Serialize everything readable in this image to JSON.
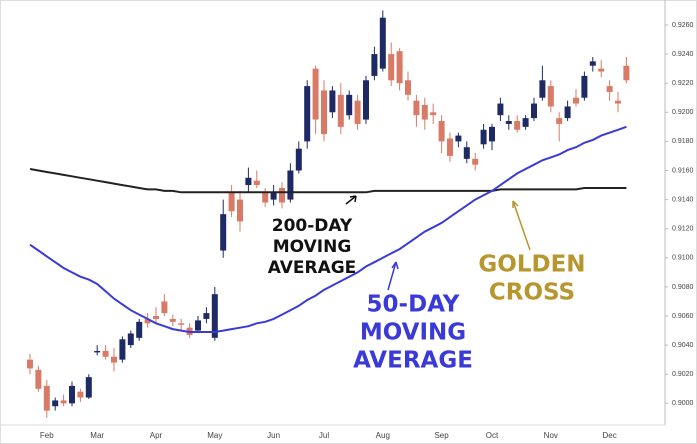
{
  "chart_data": {
    "type": "candlestick",
    "categories": [
      null,
      null,
      "Feb",
      null,
      null,
      null,
      null,
      null,
      "Mar",
      null,
      null,
      null,
      null,
      null,
      null,
      "Apr",
      null,
      null,
      null,
      null,
      null,
      null,
      "May",
      null,
      null,
      null,
      null,
      null,
      null,
      "Jun",
      null,
      null,
      null,
      null,
      null,
      "Jul",
      null,
      null,
      null,
      null,
      null,
      null,
      "Aug",
      null,
      null,
      null,
      null,
      null,
      null,
      "Sep",
      null,
      null,
      null,
      null,
      null,
      "Oct",
      null,
      null,
      null,
      null,
      null,
      null,
      "Nov",
      null,
      null,
      null,
      null,
      null,
      null,
      "Dec",
      null,
      null
    ],
    "open": [
      0.903,
      0.9023,
      0.9012,
      0.8998,
      0.9002,
      0.9,
      0.9008,
      0.9004,
      0.9035,
      0.9036,
      0.9032,
      0.903,
      0.904,
      0.9045,
      0.9058,
      0.906,
      0.907,
      0.9058,
      0.9055,
      0.9052,
      0.905,
      0.9058,
      0.9045,
      0.9105,
      0.9145,
      0.914,
      0.915,
      0.9153,
      0.9145,
      0.914,
      0.9148,
      0.914,
      0.916,
      0.918,
      0.923,
      0.9215,
      0.92,
      0.9212,
      0.9198,
      0.9208,
      0.9195,
      0.9225,
      0.923,
      0.924,
      0.9242,
      0.9222,
      0.9208,
      0.9205,
      0.92,
      0.9194,
      0.9182,
      0.918,
      0.9168,
      0.9168,
      0.9178,
      0.918,
      0.9198,
      0.9192,
      0.9194,
      0.919,
      0.9196,
      0.921,
      0.9218,
      0.9196,
      0.9196,
      0.921,
      0.921,
      0.9232,
      0.923,
      0.9218,
      0.9208,
      0.9232
    ],
    "high": [
      0.9034,
      0.9026,
      0.9016,
      0.9004,
      0.9006,
      0.9015,
      0.901,
      0.902,
      0.904,
      0.904,
      0.9038,
      0.9046,
      0.905,
      0.9058,
      0.9062,
      0.9066,
      0.9075,
      0.9061,
      0.9058,
      0.9055,
      0.906,
      0.9066,
      0.908,
      0.914,
      0.915,
      0.9146,
      0.9162,
      0.916,
      0.9148,
      0.915,
      0.9152,
      0.9165,
      0.918,
      0.9222,
      0.9232,
      0.9222,
      0.9218,
      0.922,
      0.9215,
      0.9212,
      0.9225,
      0.9245,
      0.927,
      0.9248,
      0.9244,
      0.9228,
      0.9212,
      0.921,
      0.9206,
      0.9198,
      0.9186,
      0.9186,
      0.918,
      0.9172,
      0.9192,
      0.9192,
      0.921,
      0.9198,
      0.9198,
      0.9198,
      0.921,
      0.9232,
      0.9222,
      0.92,
      0.9208,
      0.9216,
      0.9228,
      0.9238,
      0.9236,
      0.9222,
      0.9214,
      0.9238
    ],
    "low": [
      0.902,
      0.9008,
      0.899,
      0.8995,
      0.8998,
      0.8998,
      0.9001,
      0.9003,
      0.9033,
      0.903,
      0.9022,
      0.9028,
      0.9038,
      0.9043,
      0.9052,
      0.9055,
      0.906,
      0.9053,
      0.905,
      0.9045,
      0.9049,
      0.9055,
      0.9043,
      0.91,
      0.9128,
      0.9118,
      0.9145,
      0.9148,
      0.9135,
      0.9136,
      0.9134,
      0.9138,
      0.9158,
      0.9175,
      0.9185,
      0.918,
      0.9196,
      0.9185,
      0.9195,
      0.9188,
      0.9192,
      0.9222,
      0.9228,
      0.9218,
      0.9215,
      0.9208,
      0.919,
      0.9188,
      0.9192,
      0.9172,
      0.9166,
      0.9176,
      0.9165,
      0.916,
      0.9175,
      0.9174,
      0.9194,
      0.9188,
      0.9186,
      0.9188,
      0.9194,
      0.9208,
      0.92,
      0.918,
      0.9194,
      0.9204,
      0.9208,
      0.9228,
      0.9224,
      0.9208,
      0.92,
      0.922
    ],
    "close": [
      0.9024,
      0.901,
      0.8995,
      0.9002,
      0.9,
      0.9012,
      0.9004,
      0.9018,
      0.9036,
      0.9032,
      0.9028,
      0.9044,
      0.9048,
      0.9056,
      0.9055,
      0.9058,
      0.9062,
      0.9056,
      0.9054,
      0.9047,
      0.9057,
      0.9062,
      0.9075,
      0.913,
      0.9132,
      0.9125,
      0.9155,
      0.915,
      0.9138,
      0.9145,
      0.9138,
      0.916,
      0.9175,
      0.9218,
      0.9195,
      0.9185,
      0.9215,
      0.919,
      0.9212,
      0.9192,
      0.9222,
      0.924,
      0.9265,
      0.9222,
      0.922,
      0.9212,
      0.9198,
      0.9195,
      0.9198,
      0.918,
      0.917,
      0.9184,
      0.9176,
      0.9164,
      0.9188,
      0.919,
      0.9206,
      0.9194,
      0.9188,
      0.9196,
      0.9206,
      0.9222,
      0.9204,
      0.9192,
      0.9204,
      0.9206,
      0.9225,
      0.9235,
      0.9228,
      0.9214,
      0.9206,
      0.9222
    ],
    "up_color": "#1e2a66",
    "down_color": "#d97a66",
    "ma200": {
      "color": "#222222",
      "values": [
        0.9161,
        0.916,
        0.9159,
        0.9158,
        0.9157,
        0.9156,
        0.9155,
        0.9154,
        0.9153,
        0.9152,
        0.9151,
        0.915,
        0.9149,
        0.9148,
        0.9147,
        0.9147,
        0.9146,
        0.9146,
        0.9145,
        0.9145,
        0.9145,
        0.9145,
        0.9145,
        0.9145,
        0.9145,
        0.9145,
        0.9145,
        0.9145,
        0.9145,
        0.9145,
        0.9145,
        0.9145,
        0.9145,
        0.9145,
        0.9145,
        0.9145,
        0.9145,
        0.9145,
        0.9145,
        0.9145,
        0.9145,
        0.9146,
        0.9146,
        0.9146,
        0.9146,
        0.9146,
        0.9146,
        0.9146,
        0.9146,
        0.9146,
        0.9146,
        0.9146,
        0.9146,
        0.9146,
        0.9146,
        0.9146,
        0.9147,
        0.9147,
        0.9147,
        0.9147,
        0.9147,
        0.9147,
        0.9147,
        0.9147,
        0.9147,
        0.9147,
        0.9148,
        0.9148,
        0.9148,
        0.9148,
        0.9148,
        0.9148
      ]
    },
    "ma50": {
      "color": "#3a3ad8",
      "values": [
        0.9109,
        0.9105,
        0.9101,
        0.9097,
        0.9093,
        0.909,
        0.9087,
        0.9085,
        0.9082,
        0.9077,
        0.9072,
        0.9068,
        0.9064,
        0.9061,
        0.9058,
        0.9055,
        0.9053,
        0.9051,
        0.905,
        0.9049,
        0.9049,
        0.9049,
        0.9049,
        0.905,
        0.9051,
        0.9052,
        0.9053,
        0.9055,
        0.9056,
        0.9058,
        0.9061,
        0.9064,
        0.9067,
        0.9071,
        0.9074,
        0.9078,
        0.9081,
        0.9084,
        0.9087,
        0.909,
        0.9094,
        0.9097,
        0.91,
        0.9103,
        0.9106,
        0.911,
        0.9114,
        0.9118,
        0.9121,
        0.9124,
        0.9128,
        0.9132,
        0.9136,
        0.914,
        0.9143,
        0.9146,
        0.915,
        0.9154,
        0.9158,
        0.9161,
        0.9164,
        0.9167,
        0.9169,
        0.9171,
        0.9174,
        0.9176,
        0.9179,
        0.9181,
        0.9184,
        0.9186,
        0.9188,
        0.919
      ]
    },
    "annotations": [
      {
        "lines": [
          "200-DAY",
          "MOVING",
          "AVERAGE"
        ],
        "color": "#111111"
      },
      {
        "lines": [
          "50-DAY",
          "MOVING",
          "AVERAGE"
        ],
        "color": "#3a3ad8"
      },
      {
        "lines": [
          "GOLDEN",
          "CROSS"
        ],
        "color": "#b8962e"
      }
    ],
    "ylim": [
      0.8988,
      0.9274
    ],
    "yticks": [
      {
        "value": 0.9,
        "label": "0.9000"
      },
      {
        "value": 0.902,
        "label": "0.9020"
      },
      {
        "value": 0.904,
        "label": "0.9040"
      },
      {
        "value": 0.906,
        "label": "0.9060"
      },
      {
        "value": 0.908,
        "label": "0.9080"
      },
      {
        "value": 0.91,
        "label": "0.9100"
      },
      {
        "value": 0.912,
        "label": "0.9120"
      },
      {
        "value": 0.914,
        "label": "0.9140"
      },
      {
        "value": 0.916,
        "label": "0.9160"
      },
      {
        "value": 0.918,
        "label": "0.9180"
      },
      {
        "value": 0.92,
        "label": "0.9200"
      },
      {
        "value": 0.922,
        "label": "0.9220"
      },
      {
        "value": 0.924,
        "label": "0.9240"
      },
      {
        "value": 0.926,
        "label": "0.9260"
      }
    ]
  }
}
